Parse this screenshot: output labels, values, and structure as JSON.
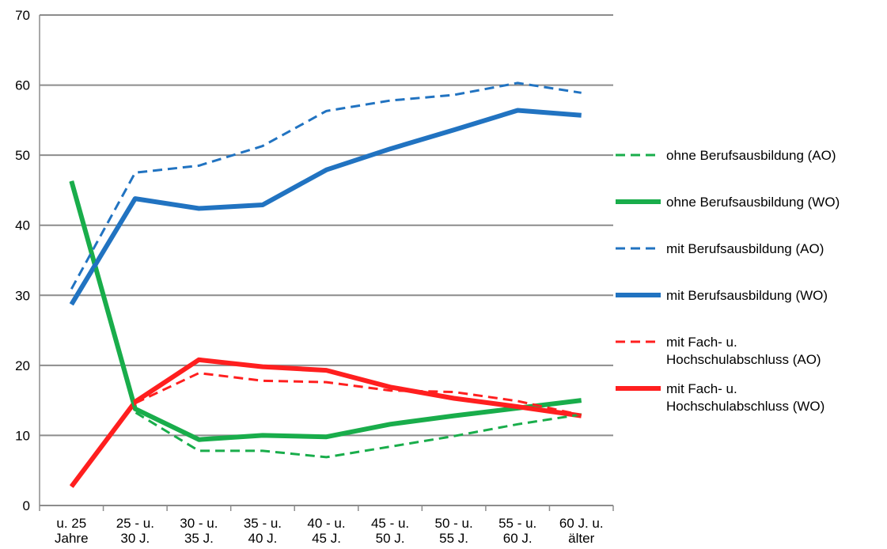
{
  "chart_data": {
    "type": "line",
    "title": "",
    "xlabel": "",
    "ylabel": "",
    "ylim": [
      0,
      70
    ],
    "y_ticks": [
      "0",
      "10",
      "20",
      "30",
      "40",
      "50",
      "60",
      "70"
    ],
    "grid": "horizontal",
    "legend_position": "right",
    "categories": [
      [
        "u. 25",
        "Jahre"
      ],
      [
        "25 - u.",
        "30 J."
      ],
      [
        "30 - u.",
        "35 J."
      ],
      [
        "35 - u.",
        "40 J."
      ],
      [
        "40 - u.",
        "45 J."
      ],
      [
        "45 - u.",
        "50 J."
      ],
      [
        "50 - u.",
        "55 J."
      ],
      [
        "55 - u.",
        "60 J."
      ],
      [
        "60 J. u.",
        "älter"
      ]
    ],
    "series": [
      {
        "name": "ohne Berufsausbildung (AO)",
        "legend_lines": [
          "ohne Berufsausbildung (AO)"
        ],
        "color": "#19ad4b",
        "style": "dashed",
        "values": [
          46.3,
          13.3,
          7.8,
          7.8,
          6.9,
          8.4,
          9.9,
          11.6,
          13.0
        ]
      },
      {
        "name": "ohne Berufsausbildung (WO)",
        "legend_lines": [
          "ohne Berufsausbildung (WO)"
        ],
        "color": "#19ad4b",
        "style": "solid",
        "values": [
          46.3,
          13.8,
          9.4,
          10.0,
          9.8,
          11.6,
          12.8,
          13.9,
          15.0
        ]
      },
      {
        "name": "mit Berufsausbildung (AO)",
        "legend_lines": [
          "mit Berufsausbildung (AO)"
        ],
        "color": "#2173c1",
        "style": "dashed",
        "values": [
          30.9,
          47.5,
          48.5,
          51.3,
          56.3,
          57.8,
          58.6,
          60.3,
          58.9
        ]
      },
      {
        "name": "mit Berufsausbildung (WO)",
        "legend_lines": [
          "mit Berufsausbildung (WO)"
        ],
        "color": "#2173c1",
        "style": "solid",
        "values": [
          28.7,
          43.8,
          42.4,
          42.9,
          47.9,
          50.9,
          53.6,
          56.4,
          55.7
        ]
      },
      {
        "name": "mit Fach- u. Hochschulabschluss (AO)",
        "legend_lines": [
          "mit Fach- u.",
          "Hochschulabschluss (AO)"
        ],
        "color": "#ff1f1f",
        "style": "dashed",
        "values": [
          2.7,
          14.6,
          18.9,
          17.8,
          17.6,
          16.4,
          16.2,
          14.9,
          12.9
        ]
      },
      {
        "name": "mit Fach- u. Hochschulabschluss (WO)",
        "legend_lines": [
          "mit Fach- u.",
          "Hochschulabschluss (WO)"
        ],
        "color": "#ff1f1f",
        "style": "solid",
        "values": [
          2.7,
          14.8,
          20.8,
          19.8,
          19.3,
          16.9,
          15.3,
          14.1,
          12.8
        ]
      }
    ]
  }
}
